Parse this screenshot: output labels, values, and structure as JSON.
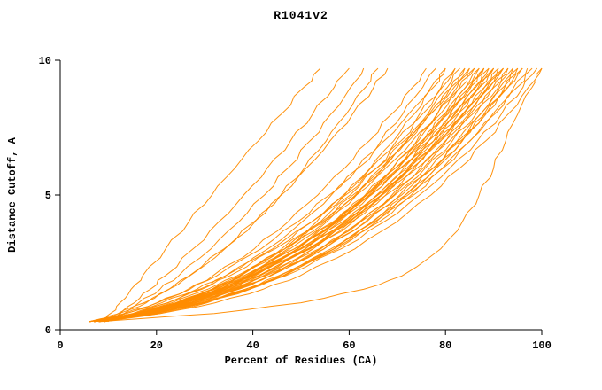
{
  "chart_data": {
    "type": "line",
    "title": "R1041v2",
    "xlabel": "Percent of Residues (CA)",
    "ylabel": "Distance Cutoff, A",
    "xlim": [
      0,
      100
    ],
    "ylim": [
      0,
      10
    ],
    "xticks": [
      0,
      20,
      40,
      60,
      80,
      100
    ],
    "yticks": [
      0,
      5,
      10
    ],
    "line_color": "#ff8c00",
    "axis_color": "#000000",
    "legend": "none",
    "grid": false,
    "y": [
      0.3,
      0.6,
      1.0,
      1.5,
      2.0,
      3.0,
      4.0,
      5.0,
      6.0,
      7.0,
      8.0,
      9.0,
      9.7
    ],
    "series": [
      [
        9,
        10.4,
        12.4,
        14.7,
        17.1,
        21.9,
        26.7,
        31.5,
        36.3,
        41.1,
        45.9,
        50.6,
        54
      ],
      [
        10,
        12.5,
        15.4,
        18.7,
        21.8,
        27.6,
        32.9,
        38.1,
        43,
        47.8,
        52.4,
        56.9,
        60
      ],
      [
        8,
        12,
        16.3,
        20.7,
        24.6,
        31.3,
        37.1,
        42.4,
        47.3,
        51.8,
        56.2,
        60.3,
        63
      ],
      [
        7,
        12.2,
        17.4,
        22.5,
        26.9,
        34.2,
        40.4,
        45.8,
        50.7,
        55.2,
        59.4,
        63.4,
        66
      ],
      [
        9,
        13.3,
        17.9,
        22.6,
        26.8,
        34,
        40.2,
        45.9,
        51.1,
        56,
        60.7,
        65.1,
        68
      ],
      [
        7,
        13.7,
        20.2,
        26.5,
        31.7,
        40.3,
        47.3,
        53.5,
        59.1,
        64.1,
        68.8,
        73.2,
        76
      ],
      [
        8,
        15.5,
        22.3,
        28.9,
        34.3,
        43.1,
        50.2,
        56.3,
        61.7,
        66.6,
        71.1,
        75.3,
        78
      ],
      [
        6,
        13.2,
        20.1,
        26.9,
        32.5,
        41.7,
        49.3,
        55.9,
        61.9,
        67.2,
        72.3,
        77,
        80
      ],
      [
        9,
        17.3,
        24.7,
        31.6,
        37.2,
        46,
        53.2,
        59.1,
        64.4,
        69.2,
        73.5,
        77.5,
        80
      ],
      [
        7,
        15,
        22.4,
        29.4,
        35.2,
        44.6,
        52.2,
        58.8,
        64.5,
        69.8,
        74.6,
        79.1,
        82
      ],
      [
        8,
        16.6,
        24.4,
        31.6,
        37.3,
        46.6,
        54,
        60.2,
        65.7,
        70.7,
        75.2,
        79.3,
        82
      ],
      [
        6,
        15.7,
        24.2,
        32,
        38.1,
        47.7,
        55.3,
        61.5,
        67,
        72,
        76.3,
        80.4,
        83
      ],
      [
        9,
        17,
        24.4,
        31.4,
        37.2,
        46.6,
        54.2,
        60.8,
        66.5,
        71.8,
        76.6,
        81.1,
        84
      ],
      [
        7,
        16,
        24,
        31.6,
        37.5,
        47.2,
        54.9,
        61.3,
        67.1,
        72.3,
        76.9,
        81.2,
        84
      ],
      [
        8,
        17.7,
        26.2,
        34,
        40.1,
        49.7,
        57.3,
        63.5,
        69,
        74,
        78.3,
        82.4,
        85
      ],
      [
        6,
        13.7,
        21.1,
        28.3,
        34.3,
        44.1,
        52.2,
        59.3,
        65.7,
        71.3,
        76.8,
        81.8,
        85
      ],
      [
        9,
        18,
        26,
        33.6,
        39.5,
        49.2,
        56.9,
        63.3,
        69.1,
        74.3,
        78.9,
        83.2,
        86
      ],
      [
        7,
        15.4,
        23.2,
        30.6,
        36.7,
        46.6,
        54.6,
        61.5,
        67.6,
        73.1,
        78.2,
        82.9,
        86
      ],
      [
        8,
        17.2,
        25.5,
        33.2,
        39.3,
        49.2,
        57.1,
        63.7,
        69.6,
        75,
        79.7,
        84.2,
        87
      ],
      [
        6,
        16.2,
        25.2,
        33.4,
        39.8,
        49.9,
        57.9,
        64.4,
        70.2,
        75.4,
        79.9,
        84.2,
        87
      ],
      [
        9,
        17.4,
        25.2,
        32.6,
        38.7,
        48.6,
        56.6,
        63.5,
        69.6,
        75.1,
        80.2,
        84.9,
        88
      ],
      [
        7,
        16.4,
        24.9,
        32.8,
        39.1,
        49.2,
        57.4,
        64.1,
        70.2,
        75.7,
        80.5,
        85.1,
        88
      ],
      [
        8,
        18.1,
        26.9,
        35,
        41.4,
        51.4,
        59.2,
        65.7,
        71.4,
        76.5,
        81,
        85.3,
        88
      ],
      [
        6,
        15.7,
        24.4,
        32.5,
        38.9,
        49.3,
        57.6,
        64.6,
        70.8,
        76.4,
        81.4,
        86,
        89
      ],
      [
        9,
        19.1,
        27.9,
        36,
        42.4,
        52.4,
        60.2,
        66.7,
        72.4,
        77.5,
        82,
        86.3,
        89
      ],
      [
        7,
        15.8,
        24,
        31.8,
        38.2,
        48.6,
        57,
        64.3,
        70.6,
        76.5,
        81.8,
        86.8,
        90
      ],
      [
        8,
        17.5,
        26.1,
        34.2,
        40.5,
        50.8,
        59,
        65.9,
        72,
        77.5,
        82.5,
        87.1,
        90
      ],
      [
        6,
        16.6,
        25.9,
        34.4,
        41.1,
        51.5,
        59.8,
        66.6,
        72.6,
        78,
        82.7,
        87.1,
        90
      ],
      [
        9,
        18.5,
        27.1,
        35.2,
        41.5,
        51.8,
        60,
        66.9,
        73,
        78.5,
        83.5,
        88.1,
        91
      ],
      [
        7,
        17.6,
        26.9,
        35.4,
        42.1,
        52.5,
        60.8,
        67.6,
        73.6,
        79,
        83.7,
        88.1,
        91
      ],
      [
        8,
        16.9,
        25.2,
        33.1,
        39.6,
        50.1,
        58.6,
        66,
        72.4,
        78.3,
        83.7,
        88.7,
        92
      ],
      [
        6,
        16,
        25,
        33.4,
        40.1,
        50.9,
        59.5,
        66.7,
        73.1,
        78.9,
        84.1,
        88.9,
        92
      ],
      [
        9,
        19.5,
        28.7,
        37.1,
        43.6,
        54,
        62.1,
        68.9,
        74.8,
        80.1,
        84.8,
        89.2,
        92
      ],
      [
        7,
        17,
        26,
        34.4,
        41.1,
        51.9,
        60.5,
        67.7,
        74.1,
        79.9,
        85.1,
        89.9,
        93
      ],
      [
        8,
        18.7,
        28.1,
        36.7,
        43.5,
        54.1,
        62.4,
        69.3,
        75.4,
        80.8,
        85.6,
        90.1,
        93
      ],
      [
        6,
        17.1,
        26.8,
        35.7,
        42.7,
        53.7,
        62.3,
        69.5,
        75.8,
        81.4,
        86.3,
        91,
        94
      ],
      [
        9,
        20.7,
        30.5,
        39.4,
        46.3,
        56.8,
        64.9,
        71.7,
        77.5,
        82.6,
        87.2,
        91.3,
        94
      ],
      [
        7,
        18.1,
        27.8,
        36.7,
        43.7,
        54.7,
        63.3,
        70.5,
        76.8,
        82.4,
        87.3,
        92,
        95
      ],
      [
        8,
        19.9,
        30.1,
        39.1,
        46.2,
        56.9,
        65.2,
        72.2,
        78.1,
        83.4,
        88,
        92.3,
        95
      ],
      [
        6,
        17.4,
        27.3,
        36.4,
        43.6,
        54.8,
        63.6,
        70.9,
        77.4,
        83.1,
        88.2,
        92.9,
        96
      ],
      [
        9,
        20,
        29.6,
        38.4,
        45.3,
        56.2,
        64.7,
        71.7,
        78,
        83.5,
        88.4,
        93,
        96
      ],
      [
        7,
        19.3,
        29.8,
        39.2,
        46.5,
        57.6,
        66.2,
        73.4,
        79.5,
        85,
        89.8,
        94.2,
        97
      ],
      [
        8,
        19.4,
        29.3,
        38.4,
        45.6,
        56.8,
        65.6,
        72.9,
        79.4,
        85.1,
        90.2,
        94.9,
        98
      ],
      [
        6,
        18.8,
        29.6,
        39.3,
        46.8,
        58.3,
        67.2,
        74.6,
        80.9,
        86.6,
        91.6,
        96.1,
        99
      ],
      [
        7,
        20.8,
        32.2,
        42.1,
        49.8,
        61.2,
        69.9,
        77,
        83,
        88.3,
        93,
        97.2,
        100
      ],
      [
        8,
        32,
        50,
        63,
        71,
        79,
        83.5,
        87,
        90,
        92.5,
        95,
        98,
        100
      ]
    ]
  }
}
